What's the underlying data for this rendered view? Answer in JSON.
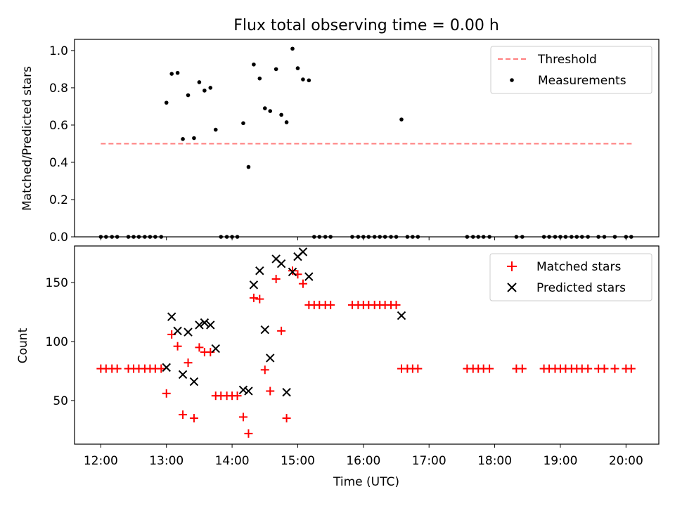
{
  "chart_data": [
    {
      "type": "scatter",
      "title": "Flux total observing time = 0.00 h",
      "xlabel": "",
      "ylabel": "Matched/Predicted stars",
      "xlim": [
        11.6,
        20.5
      ],
      "ylim": [
        0,
        1.06
      ],
      "yticks": [
        0.0,
        0.2,
        0.4,
        0.6,
        0.8,
        1.0
      ],
      "ytick_labels": [
        "0.0",
        "0.2",
        "0.4",
        "0.6",
        "0.8",
        "1.0"
      ],
      "legend_position": "top-right",
      "grid": false,
      "threshold": {
        "name": "Threshold",
        "y": 0.5,
        "x": [
          12.0,
          20.1
        ],
        "color": "#ff7f7f",
        "style": "dashed"
      },
      "series": [
        {
          "name": "Measurements",
          "color": "#000000",
          "marker": "dot",
          "points": [
            [
              12.0,
              0.0
            ],
            [
              12.08,
              0.0
            ],
            [
              12.17,
              0.0
            ],
            [
              12.25,
              0.0
            ],
            [
              12.42,
              0.0
            ],
            [
              12.5,
              0.0
            ],
            [
              12.58,
              0.0
            ],
            [
              12.67,
              0.0
            ],
            [
              12.75,
              0.0
            ],
            [
              12.83,
              0.0
            ],
            [
              12.92,
              0.0
            ],
            [
              13.0,
              0.72
            ],
            [
              13.08,
              0.875
            ],
            [
              13.17,
              0.88
            ],
            [
              13.25,
              0.525
            ],
            [
              13.33,
              0.76
            ],
            [
              13.42,
              0.53
            ],
            [
              13.5,
              0.83
            ],
            [
              13.58,
              0.785
            ],
            [
              13.67,
              0.8
            ],
            [
              13.75,
              0.575
            ],
            [
              13.83,
              0.0
            ],
            [
              13.92,
              0.0
            ],
            [
              14.0,
              0.0
            ],
            [
              14.08,
              0.0
            ],
            [
              14.17,
              0.61
            ],
            [
              14.25,
              0.375
            ],
            [
              14.33,
              0.925
            ],
            [
              14.42,
              0.85
            ],
            [
              14.5,
              0.69
            ],
            [
              14.58,
              0.675
            ],
            [
              14.67,
              0.9
            ],
            [
              14.75,
              0.655
            ],
            [
              14.83,
              0.615
            ],
            [
              14.92,
              1.01
            ],
            [
              15.0,
              0.905
            ],
            [
              15.08,
              0.845
            ],
            [
              15.17,
              0.84
            ],
            [
              15.25,
              0.0
            ],
            [
              15.33,
              0.0
            ],
            [
              15.42,
              0.0
            ],
            [
              15.5,
              0.0
            ],
            [
              15.83,
              0.0
            ],
            [
              15.92,
              0.0
            ],
            [
              16.0,
              0.0
            ],
            [
              16.08,
              0.0
            ],
            [
              16.17,
              0.0
            ],
            [
              16.25,
              0.0
            ],
            [
              16.33,
              0.0
            ],
            [
              16.42,
              0.0
            ],
            [
              16.5,
              0.0
            ],
            [
              16.58,
              0.63
            ],
            [
              16.67,
              0.0
            ],
            [
              16.75,
              0.0
            ],
            [
              16.83,
              0.0
            ],
            [
              17.58,
              0.0
            ],
            [
              17.67,
              0.0
            ],
            [
              17.75,
              0.0
            ],
            [
              17.83,
              0.0
            ],
            [
              17.92,
              0.0
            ],
            [
              18.33,
              0.0
            ],
            [
              18.42,
              0.0
            ],
            [
              18.75,
              0.0
            ],
            [
              18.83,
              0.0
            ],
            [
              18.92,
              0.0
            ],
            [
              19.0,
              0.0
            ],
            [
              19.08,
              0.0
            ],
            [
              19.17,
              0.0
            ],
            [
              19.25,
              0.0
            ],
            [
              19.33,
              0.0
            ],
            [
              19.42,
              0.0
            ],
            [
              19.58,
              0.0
            ],
            [
              19.67,
              0.0
            ],
            [
              19.83,
              0.0
            ],
            [
              20.0,
              0.0
            ],
            [
              20.08,
              0.0
            ]
          ]
        }
      ]
    },
    {
      "type": "scatter",
      "title": "",
      "xlabel": "Time (UTC)",
      "ylabel": "Count",
      "xlim": [
        11.6,
        20.5
      ],
      "ylim": [
        13,
        181
      ],
      "yticks": [
        50,
        100,
        150
      ],
      "ytick_labels": [
        "50",
        "100",
        "150"
      ],
      "xticks": [
        12,
        13,
        14,
        15,
        16,
        17,
        18,
        19,
        20
      ],
      "xtick_labels": [
        "12:00",
        "13:00",
        "14:00",
        "15:00",
        "16:00",
        "17:00",
        "18:00",
        "19:00",
        "20:00"
      ],
      "legend_position": "top-right",
      "grid": false,
      "series": [
        {
          "name": "Matched stars",
          "color": "#ff0000",
          "marker": "plus",
          "points": [
            [
              12.0,
              77
            ],
            [
              12.08,
              77
            ],
            [
              12.17,
              77
            ],
            [
              12.25,
              77
            ],
            [
              12.42,
              77
            ],
            [
              12.5,
              77
            ],
            [
              12.58,
              77
            ],
            [
              12.67,
              77
            ],
            [
              12.75,
              77
            ],
            [
              12.83,
              77
            ],
            [
              12.92,
              77
            ],
            [
              13.0,
              56
            ],
            [
              13.08,
              106
            ],
            [
              13.17,
              96
            ],
            [
              13.25,
              38
            ],
            [
              13.33,
              82
            ],
            [
              13.42,
              35
            ],
            [
              13.5,
              95
            ],
            [
              13.58,
              91
            ],
            [
              13.67,
              91
            ],
            [
              13.75,
              54
            ],
            [
              13.83,
              54
            ],
            [
              13.92,
              54
            ],
            [
              14.0,
              54
            ],
            [
              14.08,
              54
            ],
            [
              14.17,
              36
            ],
            [
              14.25,
              22
            ],
            [
              14.33,
              137
            ],
            [
              14.42,
              136
            ],
            [
              14.5,
              76
            ],
            [
              14.58,
              58
            ],
            [
              14.67,
              153
            ],
            [
              14.75,
              109
            ],
            [
              14.83,
              35
            ],
            [
              14.92,
              160
            ],
            [
              15.0,
              157
            ],
            [
              15.08,
              149
            ],
            [
              15.17,
              131
            ],
            [
              15.25,
              131
            ],
            [
              15.33,
              131
            ],
            [
              15.42,
              131
            ],
            [
              15.5,
              131
            ],
            [
              15.83,
              131
            ],
            [
              15.92,
              131
            ],
            [
              16.0,
              131
            ],
            [
              16.08,
              131
            ],
            [
              16.17,
              131
            ],
            [
              16.25,
              131
            ],
            [
              16.33,
              131
            ],
            [
              16.42,
              131
            ],
            [
              16.5,
              131
            ],
            [
              16.58,
              77
            ],
            [
              16.67,
              77
            ],
            [
              16.75,
              77
            ],
            [
              16.83,
              77
            ],
            [
              17.58,
              77
            ],
            [
              17.67,
              77
            ],
            [
              17.75,
              77
            ],
            [
              17.83,
              77
            ],
            [
              17.92,
              77
            ],
            [
              18.33,
              77
            ],
            [
              18.42,
              77
            ],
            [
              18.75,
              77
            ],
            [
              18.83,
              77
            ],
            [
              18.92,
              77
            ],
            [
              19.0,
              77
            ],
            [
              19.08,
              77
            ],
            [
              19.17,
              77
            ],
            [
              19.25,
              77
            ],
            [
              19.33,
              77
            ],
            [
              19.42,
              77
            ],
            [
              19.58,
              77
            ],
            [
              19.67,
              77
            ],
            [
              19.83,
              77
            ],
            [
              20.0,
              77
            ],
            [
              20.08,
              77
            ]
          ]
        },
        {
          "name": "Predicted stars",
          "color": "#000000",
          "marker": "x",
          "points": [
            [
              13.0,
              78
            ],
            [
              13.08,
              121
            ],
            [
              13.17,
              109
            ],
            [
              13.25,
              72
            ],
            [
              13.33,
              108
            ],
            [
              13.42,
              66
            ],
            [
              13.5,
              114
            ],
            [
              13.58,
              116
            ],
            [
              13.67,
              114
            ],
            [
              13.75,
              94
            ],
            [
              14.17,
              59
            ],
            [
              14.25,
              58
            ],
            [
              14.33,
              148
            ],
            [
              14.42,
              160
            ],
            [
              14.5,
              110
            ],
            [
              14.58,
              86
            ],
            [
              14.67,
              170
            ],
            [
              14.75,
              166
            ],
            [
              14.83,
              57
            ],
            [
              14.92,
              159
            ],
            [
              15.0,
              172
            ],
            [
              15.08,
              176
            ],
            [
              15.17,
              155
            ],
            [
              16.58,
              122
            ]
          ]
        }
      ]
    }
  ]
}
